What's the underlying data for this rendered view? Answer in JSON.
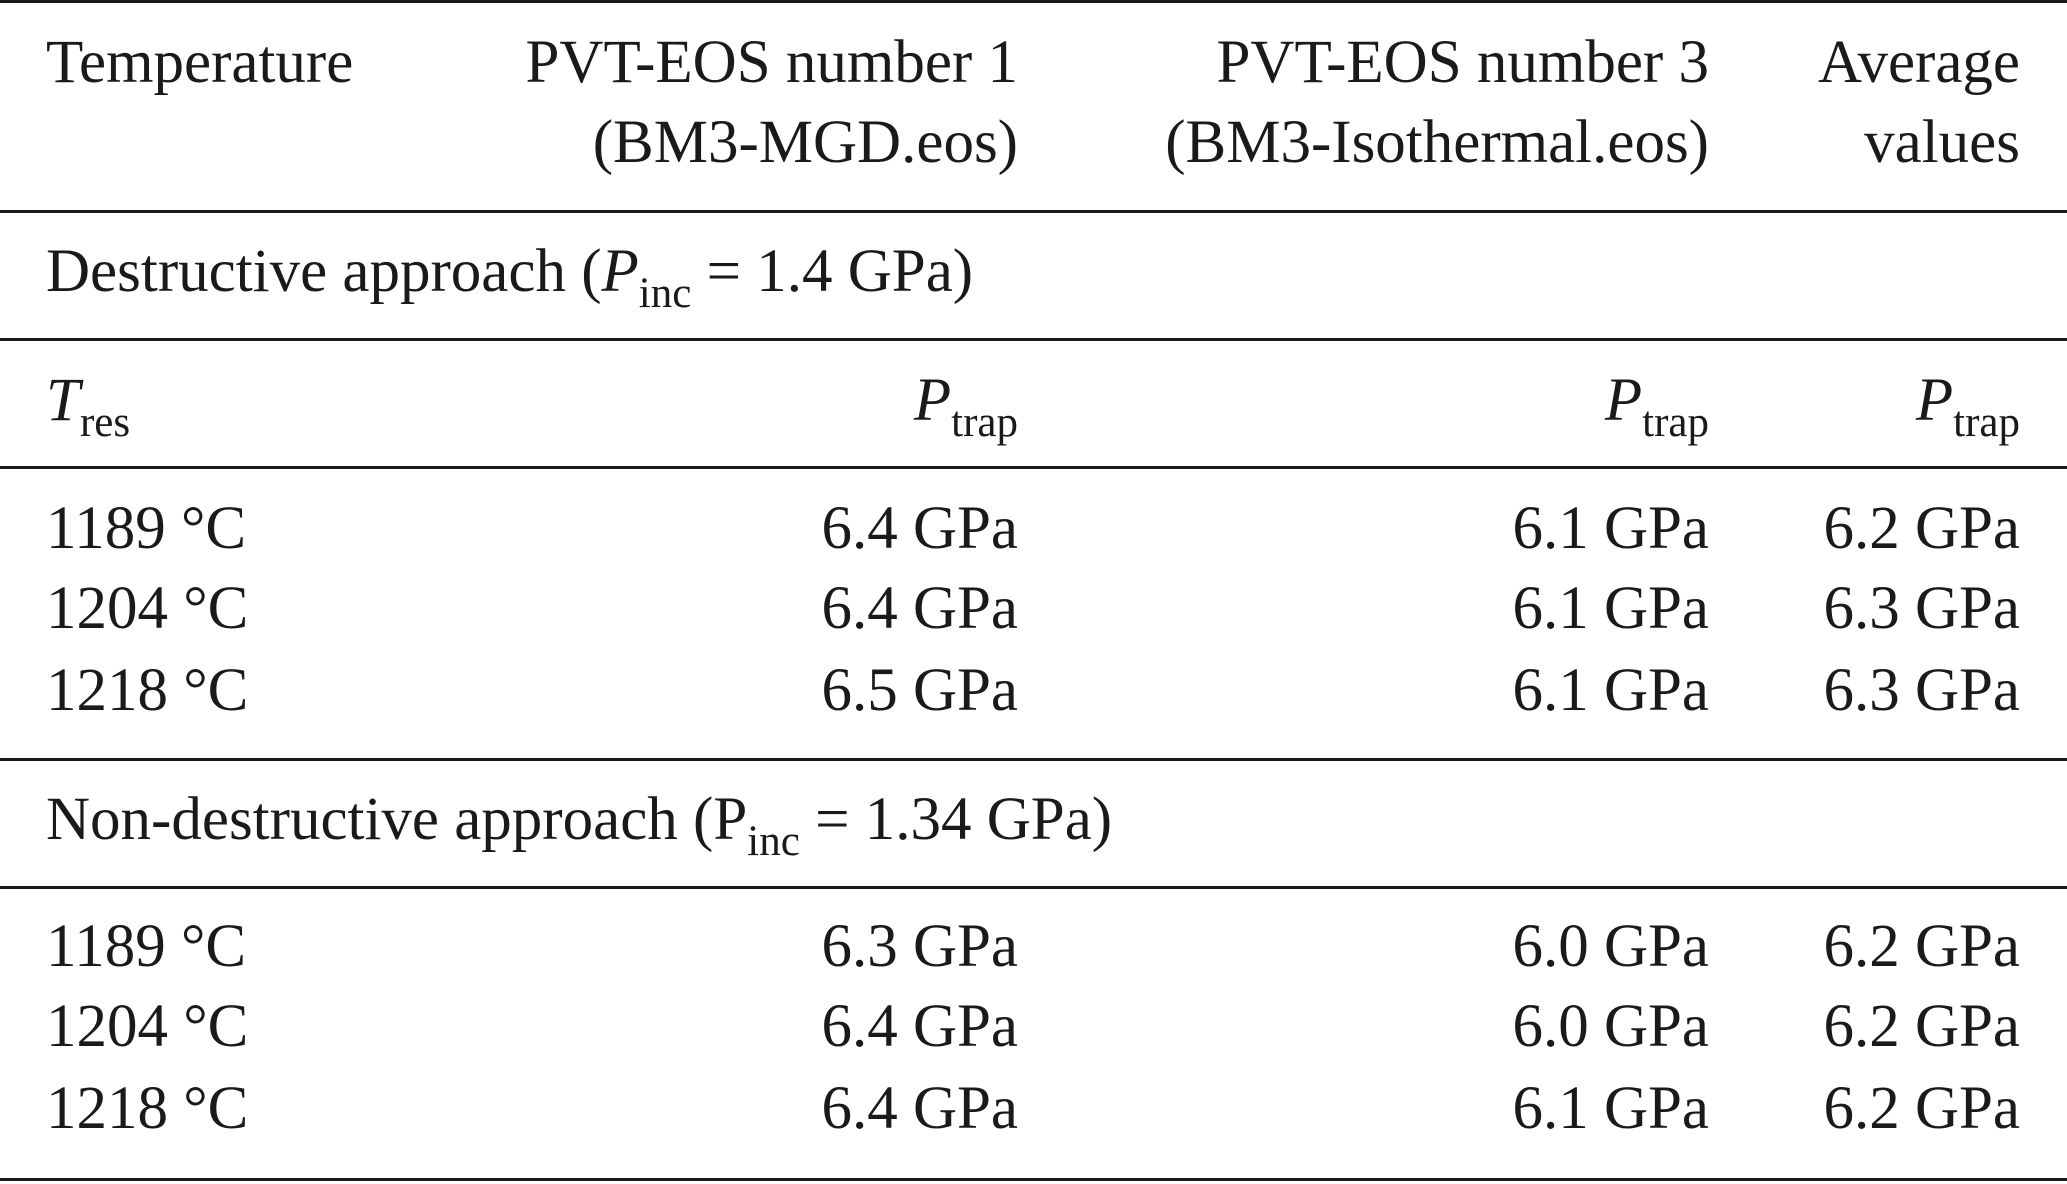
{
  "header": {
    "temperature": "Temperature",
    "eos1_line1": "PVT-EOS number 1",
    "eos1_line2": "(BM3-MGD.eos)",
    "eos3_line1": "PVT-EOS number 3",
    "eos3_line2": "(BM3-Isothermal.eos)",
    "avg_line1": "Average",
    "avg_line2": "values"
  },
  "sections": [
    {
      "title_prefix": "Destructive approach (",
      "title_symbol": "P",
      "title_sub": "inc",
      "title_suffix": " = 1.4 GPa)",
      "colheads": {
        "temp_symbol": "T",
        "temp_sub": "res",
        "p_symbol": "P",
        "p_sub": "trap"
      },
      "rows": [
        {
          "temp": "1189 °C",
          "eos1": "6.4 GPa",
          "eos3": "6.1 GPa",
          "avg": "6.2 GPa"
        },
        {
          "temp": "1204 °C",
          "eos1": "6.4 GPa",
          "eos3": "6.1 GPa",
          "avg": "6.3 GPa"
        },
        {
          "temp": "1218 °C",
          "eos1": "6.5 GPa",
          "eos3": "6.1 GPa",
          "avg": "6.3 GPa"
        }
      ]
    },
    {
      "title_prefix": "Non-destructive approach (",
      "title_symbol": "P",
      "title_sub": "inc",
      "title_suffix": " = 1.34 GPa)",
      "rows": [
        {
          "temp": "1189 °C",
          "eos1": "6.3 GPa",
          "eos3": "6.0 GPa",
          "avg": "6.2 GPa"
        },
        {
          "temp": "1204 °C",
          "eos1": "6.4 GPa",
          "eos3": "6.0 GPa",
          "avg": "6.2 GPa"
        },
        {
          "temp": "1218 °C",
          "eos1": "6.4 GPa",
          "eos3": "6.1 GPa",
          "avg": "6.2 GPa"
        }
      ]
    }
  ]
}
